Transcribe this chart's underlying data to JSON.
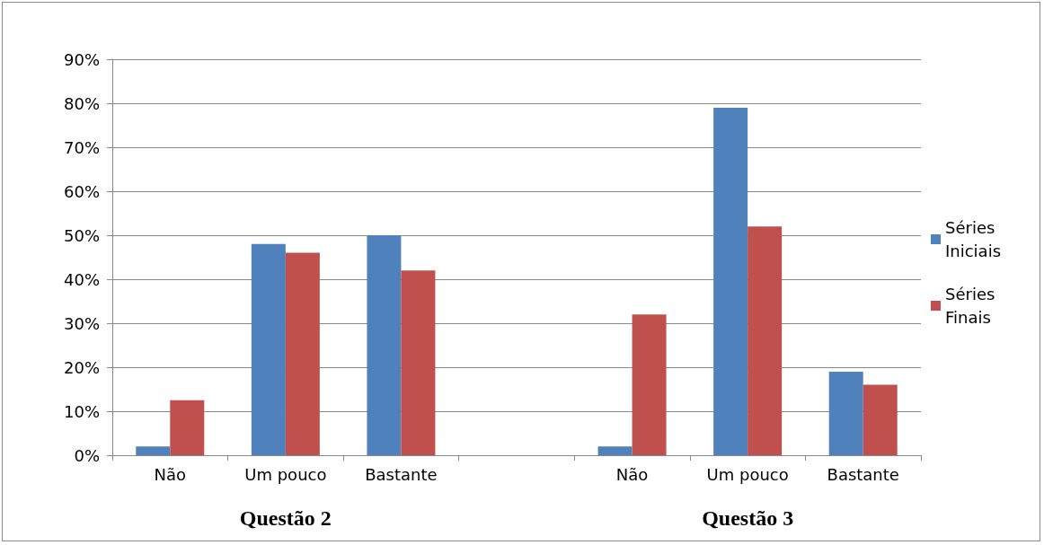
{
  "chart_data": {
    "type": "bar",
    "categories": [
      "Não",
      "Um pouco",
      "Bastante",
      null,
      "Não",
      "Um pouco",
      "Bastante"
    ],
    "series": [
      {
        "name": "Séries Iniciais",
        "color": "#4f81bd",
        "values": [
          2,
          48,
          50,
          null,
          2,
          79,
          19
        ]
      },
      {
        "name": "Séries Finais",
        "color": "#c0504d",
        "values": [
          12.5,
          46,
          42,
          null,
          32,
          52,
          16
        ]
      }
    ],
    "ylim": [
      0,
      90
    ],
    "yticks": [
      {
        "value": 0,
        "label": "0%"
      },
      {
        "value": 10,
        "label": "10%"
      },
      {
        "value": 20,
        "label": "20%"
      },
      {
        "value": 30,
        "label": "30%"
      },
      {
        "value": 40,
        "label": "40%"
      },
      {
        "value": 50,
        "label": "50%"
      },
      {
        "value": 60,
        "label": "60%"
      },
      {
        "value": 70,
        "label": "70%"
      },
      {
        "value": 80,
        "label": "80%"
      },
      {
        "value": 90,
        "label": "90%"
      }
    ],
    "grid": "y",
    "legend": "right",
    "annotations": [
      "Questão 2",
      "Questão 3"
    ]
  }
}
